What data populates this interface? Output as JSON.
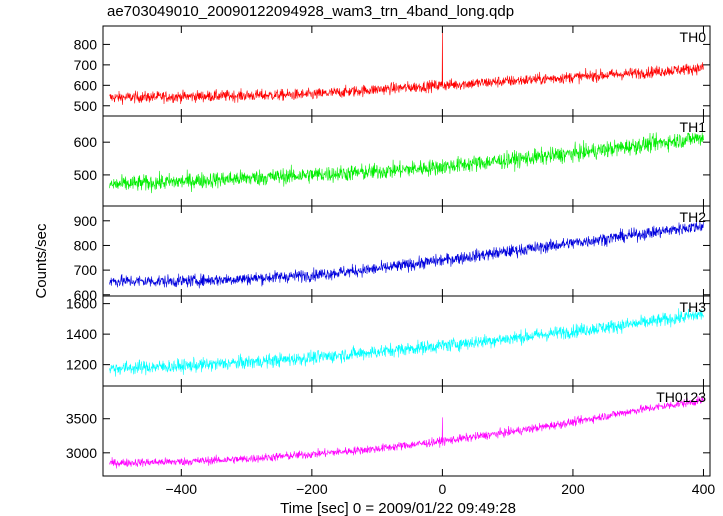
{
  "chart_data": {
    "type": "line",
    "title": "ae703049010_20090122094928_wam3_trn_4band_long.qdp",
    "xlabel": "Time [sec] 0 = 2009/01/22 09:49:28",
    "ylabel": "Counts/sec",
    "xlim": [
      -520,
      410
    ],
    "x_ticks": [
      -400,
      -200,
      0,
      200,
      400
    ],
    "x_tick_labels": [
      "−400",
      "−200",
      "0",
      "200",
      "400"
    ],
    "grid": false,
    "panels": [
      {
        "name": "TH0",
        "color": "#ff0000",
        "ylim": [
          450,
          890
        ],
        "y_ticks": [
          500,
          600,
          700,
          800
        ],
        "x": [
          -510,
          -400,
          -300,
          -200,
          -100,
          0,
          100,
          200,
          300,
          400
        ],
        "y": [
          540,
          545,
          550,
          555,
          580,
          600,
          620,
          640,
          660,
          685
        ],
        "noise": 50,
        "spike": {
          "x": 0,
          "y": 880
        }
      },
      {
        "name": "TH1",
        "color": "#00ee00",
        "ylim": [
          405,
          680
        ],
        "y_ticks": [
          500,
          600
        ],
        "x": [
          -510,
          -400,
          -300,
          -200,
          -100,
          0,
          100,
          200,
          300,
          400
        ],
        "y": [
          470,
          480,
          490,
          500,
          510,
          525,
          545,
          565,
          590,
          615
        ],
        "noise": 45
      },
      {
        "name": "TH2",
        "color": "#0000dd",
        "ylim": [
          595,
          960
        ],
        "y_ticks": [
          600,
          700,
          800,
          900
        ],
        "x": [
          -510,
          -400,
          -300,
          -200,
          -100,
          0,
          100,
          200,
          300,
          400
        ],
        "y": [
          655,
          655,
          665,
          680,
          705,
          740,
          775,
          810,
          845,
          880
        ],
        "noise": 45
      },
      {
        "name": "TH3",
        "color": "#00ffff",
        "ylim": [
          1060,
          1650
        ],
        "y_ticks": [
          1200,
          1400,
          1600
        ],
        "x": [
          -510,
          -400,
          -300,
          -200,
          -100,
          0,
          100,
          200,
          300,
          400
        ],
        "y": [
          1175,
          1190,
          1215,
          1245,
          1285,
          1325,
          1370,
          1420,
          1470,
          1530
        ],
        "noise": 80
      },
      {
        "name": "TH0123",
        "color": "#ff00ff",
        "ylim": [
          2660,
          3980
        ],
        "y_ticks": [
          3000,
          3500
        ],
        "x": [
          -510,
          -400,
          -300,
          -200,
          -100,
          0,
          100,
          200,
          300,
          400
        ],
        "y": [
          2850,
          2870,
          2910,
          2980,
          3060,
          3170,
          3300,
          3450,
          3630,
          3770
        ],
        "noise": 110,
        "spike": {
          "x": 0,
          "y": 3520
        }
      }
    ]
  }
}
